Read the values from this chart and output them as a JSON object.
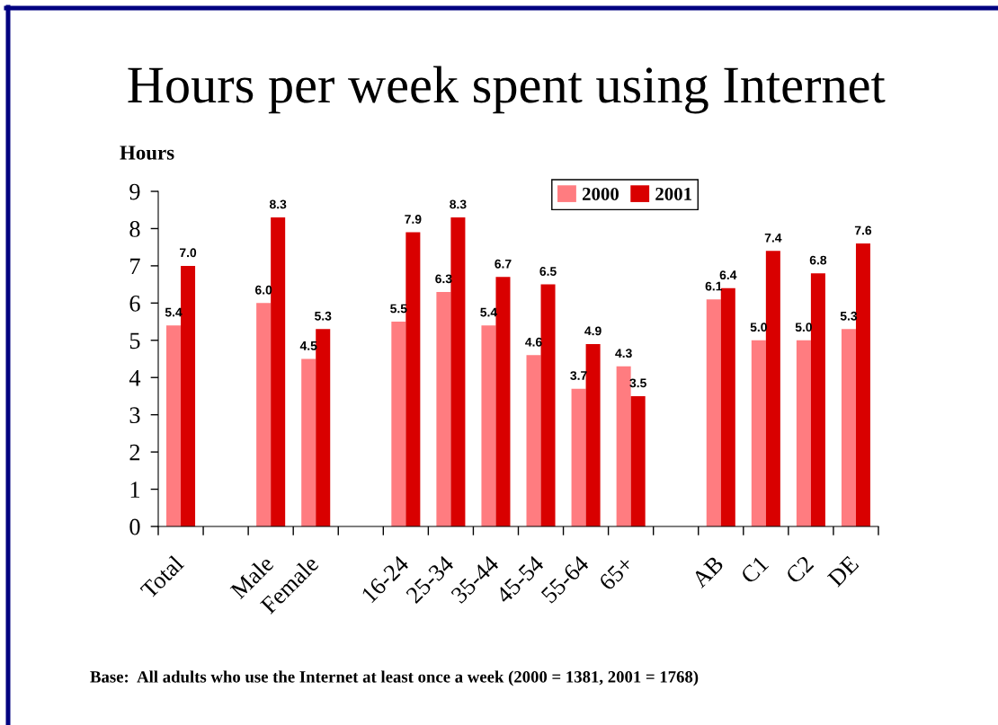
{
  "chart_data": {
    "type": "bar",
    "title": "Hours per week spent using Internet",
    "ylabel": "Hours",
    "categories": [
      "Total",
      null,
      "Male",
      "Female",
      null,
      "16-24",
      "25-34",
      "35-44",
      "45-54",
      "55-64",
      "65+",
      null,
      "AB",
      "C1",
      "C2",
      "DE"
    ],
    "series": [
      {
        "name": "2000",
        "color": "#ff7c80",
        "values": [
          5.4,
          null,
          6.0,
          4.5,
          null,
          5.5,
          6.3,
          5.4,
          4.6,
          3.7,
          4.3,
          null,
          6.1,
          5.0,
          5.0,
          5.3
        ],
        "value_labels": [
          "5.4",
          null,
          "6.0",
          "4.5",
          null,
          "5.5",
          "6.3",
          "5.4",
          "4.6",
          "3.7",
          "4.3",
          null,
          "6.1",
          "5.0",
          "5.0",
          "5.3"
        ]
      },
      {
        "name": "2001",
        "color": "#d90000",
        "values": [
          7.0,
          null,
          8.3,
          5.3,
          null,
          7.9,
          8.3,
          6.7,
          6.5,
          4.9,
          3.5,
          null,
          6.4,
          7.4,
          6.8,
          7.6
        ],
        "value_labels": [
          "7.0",
          null,
          "8.3",
          "5.3",
          null,
          "7.9",
          "8.3",
          "6.7",
          "6.5",
          "4.9",
          "3.5",
          null,
          "6.4",
          "7.4",
          "6.8",
          "7.6"
        ]
      }
    ],
    "ylim": [
      0,
      9
    ],
    "yticks": [
      0,
      1,
      2,
      3,
      4,
      5,
      6,
      7,
      8,
      9
    ],
    "legend": "top",
    "annotations": [
      "Base:  All adults who use the Internet at least once a week (2000 = 1381, 2001 = 1768)"
    ]
  }
}
